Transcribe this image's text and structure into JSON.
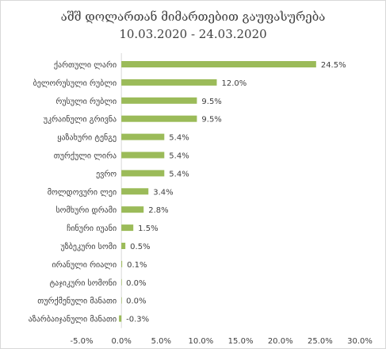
{
  "chart_data": {
    "type": "bar",
    "orientation": "horizontal",
    "title": "აშშ დოლართან მიმართებით გაუფასურება",
    "subtitle": "10.03.2020 - 24.03.2020",
    "categories": [
      "ქართული ლარი",
      "ბელორუსული რუბლი",
      "რუსული რუბლი",
      "უკრაინული გრივნა",
      "ყაზახური ტენგე",
      "თურქული ლირა",
      "ევრო",
      "მოლდოვური ლეი",
      "სომხური დრამი",
      "ჩინური იუანი",
      "უზბეკური სომი",
      "ირანული რიალი",
      "ტაჯიკური სომონი",
      "თურქმენული მანათი",
      "აზარბაიჯანული მანათი"
    ],
    "values": [
      24.5,
      12.0,
      9.5,
      9.5,
      5.4,
      5.4,
      5.4,
      3.4,
      2.8,
      1.5,
      0.5,
      0.1,
      0.0,
      0.0,
      -0.3
    ],
    "value_labels": [
      "24.5%",
      "12.0%",
      "9.5%",
      "9.5%",
      "5.4%",
      "5.4%",
      "5.4%",
      "3.4%",
      "2.8%",
      "1.5%",
      "0.5%",
      "0.1%",
      "0.0%",
      "0.0%",
      "-0.3%"
    ],
    "xlim": [
      -5,
      30
    ],
    "x_ticks": [
      -5,
      0,
      5,
      10,
      15,
      20,
      25,
      30
    ],
    "x_tick_labels": [
      "-5.0%",
      "0.0%",
      "5.0%",
      "10.0%",
      "15.0%",
      "20.0%",
      "25.0%",
      "30.0%"
    ],
    "grid": false,
    "legend": "none",
    "bar_color": "#9bbb59"
  }
}
